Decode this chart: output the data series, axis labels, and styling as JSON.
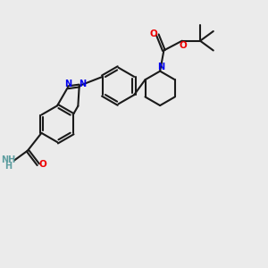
{
  "background_color": "#ebebeb",
  "bond_color": "#1a1a1a",
  "nitrogen_color": "#0000ee",
  "oxygen_color": "#ee0000",
  "nh2_color": "#5f9ea0",
  "line_width": 1.5,
  "figsize": [
    3.0,
    3.0
  ],
  "dpi": 100,
  "xlim": [
    0,
    10
  ],
  "ylim": [
    0,
    10
  ]
}
